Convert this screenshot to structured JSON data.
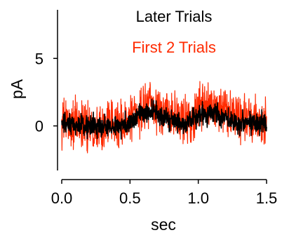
{
  "chart_data": {
    "type": "line",
    "title": "",
    "xlabel": "sec",
    "ylabel": "pA",
    "xlim": [
      0.0,
      1.5
    ],
    "ylim": [
      -3.3,
      8.6
    ],
    "grid": false,
    "legend_position": "top-right",
    "x_ticks": [
      {
        "value": 0.0,
        "label": "0.0"
      },
      {
        "value": 0.5,
        "label": "0.5"
      },
      {
        "value": 1.0,
        "label": "1.0"
      },
      {
        "value": 1.5,
        "label": "1.5"
      }
    ],
    "y_ticks": [
      {
        "value": 0,
        "label": "0"
      },
      {
        "value": 5,
        "label": "5"
      }
    ],
    "series": [
      {
        "name": "First 2 Trials",
        "color": "#ff2a00",
        "noise": 0.85,
        "x": [
          0.0,
          0.1,
          0.2,
          0.3,
          0.4,
          0.5,
          0.55,
          0.6,
          0.65,
          0.7,
          0.75,
          0.8,
          0.85,
          0.9,
          0.95,
          1.0,
          1.05,
          1.1,
          1.15,
          1.2,
          1.25,
          1.3,
          1.35,
          1.4,
          1.45,
          1.5
        ],
        "y": [
          0.2,
          0.1,
          0.1,
          0.0,
          0.1,
          0.3,
          0.9,
          1.5,
          1.6,
          1.2,
          1.0,
          0.7,
          0.5,
          0.3,
          0.4,
          1.0,
          1.5,
          1.6,
          1.2,
          1.0,
          0.7,
          0.5,
          0.4,
          0.3,
          0.3,
          0.3
        ]
      },
      {
        "name": "Later Trials",
        "color": "#000000",
        "noise": 0.4,
        "x": [
          0.0,
          0.1,
          0.2,
          0.3,
          0.4,
          0.5,
          0.55,
          0.6,
          0.65,
          0.7,
          0.75,
          0.8,
          0.85,
          0.9,
          0.95,
          1.0,
          1.05,
          1.1,
          1.15,
          1.2,
          1.25,
          1.3,
          1.35,
          1.4,
          1.45,
          1.5
        ],
        "y": [
          0.1,
          0.0,
          0.0,
          -0.1,
          0.0,
          0.2,
          0.7,
          1.0,
          1.1,
          0.9,
          0.7,
          0.4,
          0.2,
          0.1,
          0.3,
          0.7,
          0.9,
          1.0,
          0.8,
          0.6,
          0.4,
          0.3,
          0.3,
          0.3,
          0.3,
          0.3
        ]
      }
    ]
  }
}
